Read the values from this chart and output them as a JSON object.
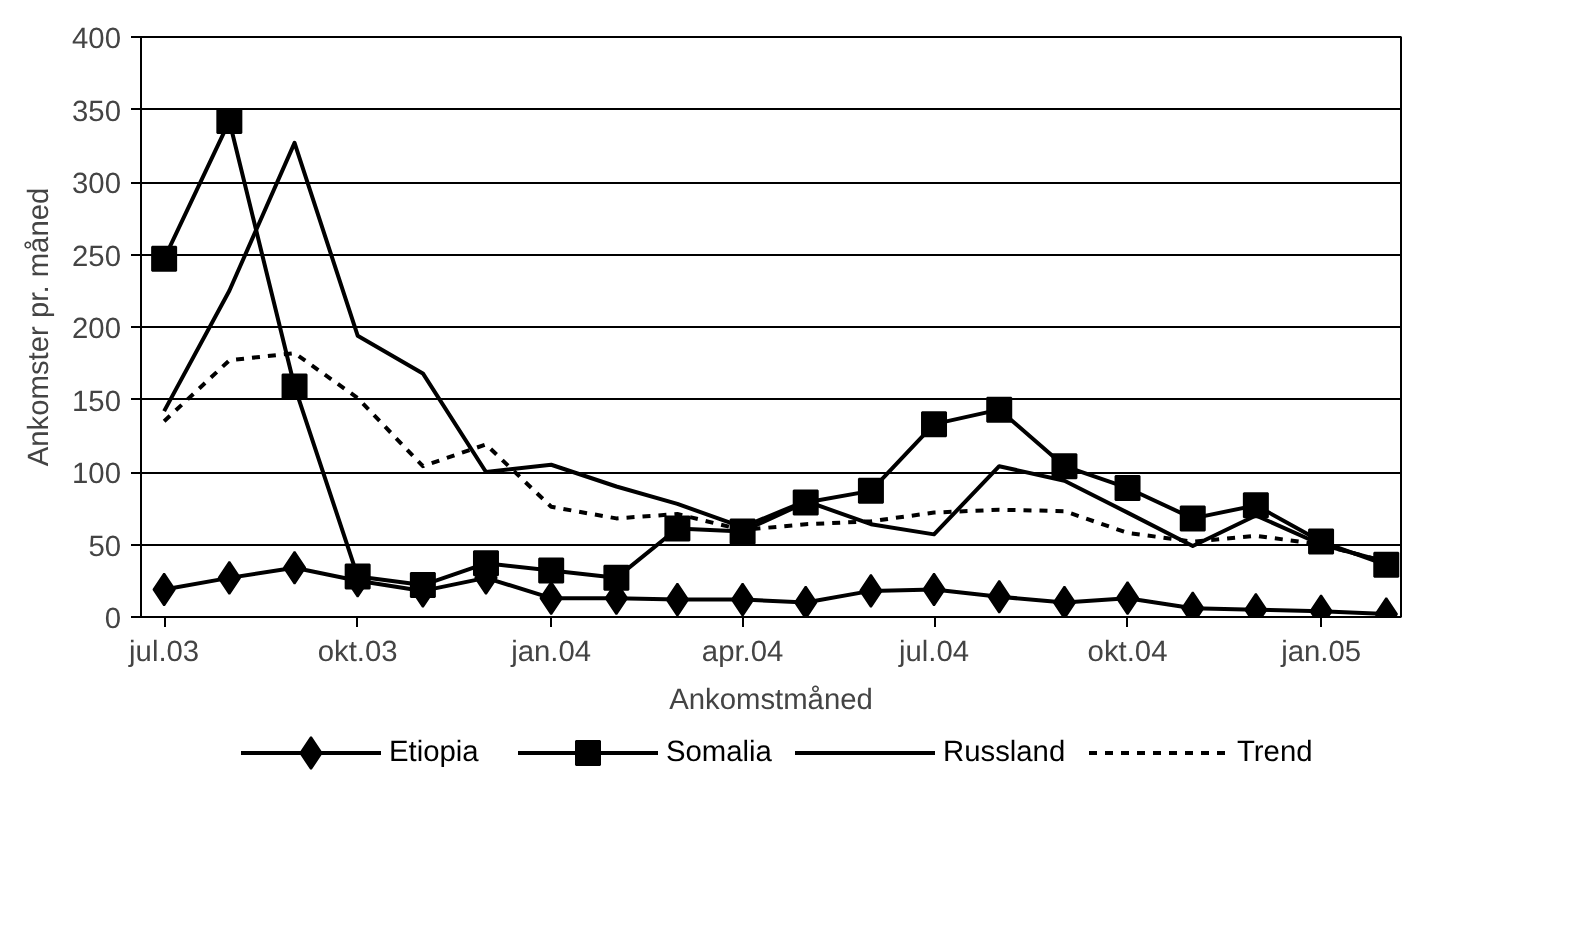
{
  "chart_data": {
    "type": "line",
    "xlabel": "Ankomstmåned",
    "ylabel": "Ankomster pr. måned",
    "x": [
      "2003-07",
      "2003-08",
      "2003-09",
      "2003-10",
      "2003-11",
      "2003-12",
      "2004-01",
      "2004-02",
      "2004-03",
      "2004-04",
      "2004-05",
      "2004-06",
      "2004-07",
      "2004-08",
      "2004-09",
      "2004-10",
      "2004-11",
      "2004-12",
      "2005-01",
      "2005-02"
    ],
    "xlim": [
      "2003-06-20",
      "2005-02-08"
    ],
    "xticks": [
      {
        "value": "2003-07",
        "label": "jul.03"
      },
      {
        "value": "2003-10",
        "label": "okt.03"
      },
      {
        "value": "2004-01",
        "label": "jan.04"
      },
      {
        "value": "2004-04",
        "label": "apr.04"
      },
      {
        "value": "2004-07",
        "label": "jul.04"
      },
      {
        "value": "2004-10",
        "label": "okt.04"
      },
      {
        "value": "2005-01",
        "label": "jan.05"
      }
    ],
    "ylim": [
      0,
      400
    ],
    "yticks": [
      0,
      50,
      100,
      150,
      200,
      250,
      300,
      350,
      400
    ],
    "grid": "y",
    "legend": "bottom",
    "series": [
      {
        "name": "Etiopia",
        "color": "#000000",
        "marker": "diamond",
        "line_style": "solid",
        "values": [
          19,
          27,
          34,
          25,
          18,
          27,
          13,
          13,
          12,
          12,
          10,
          18,
          19,
          14,
          10,
          13,
          6,
          5,
          4,
          2
        ]
      },
      {
        "name": "Somalia",
        "color": "#000000",
        "marker": "square",
        "line_style": "solid",
        "values": [
          247,
          342,
          159,
          28,
          22,
          37,
          32,
          27,
          61,
          59,
          79,
          87,
          133,
          143,
          104,
          89,
          68,
          77,
          52,
          36
        ]
      },
      {
        "name": "Russland",
        "color": "#000000",
        "marker": "none",
        "line_style": "solid",
        "values": [
          142,
          225,
          327,
          194,
          168,
          100,
          105,
          90,
          78,
          62,
          80,
          64,
          57,
          104,
          94,
          72,
          49,
          70,
          50,
          38
        ]
      },
      {
        "name": "Trend",
        "color": "#000000",
        "marker": "none",
        "line_style": "dashed",
        "values": [
          135,
          177,
          182,
          151,
          104,
          119,
          76,
          68,
          71,
          60,
          64,
          66,
          72,
          74,
          73,
          58,
          52,
          56,
          50,
          38
        ]
      }
    ]
  }
}
